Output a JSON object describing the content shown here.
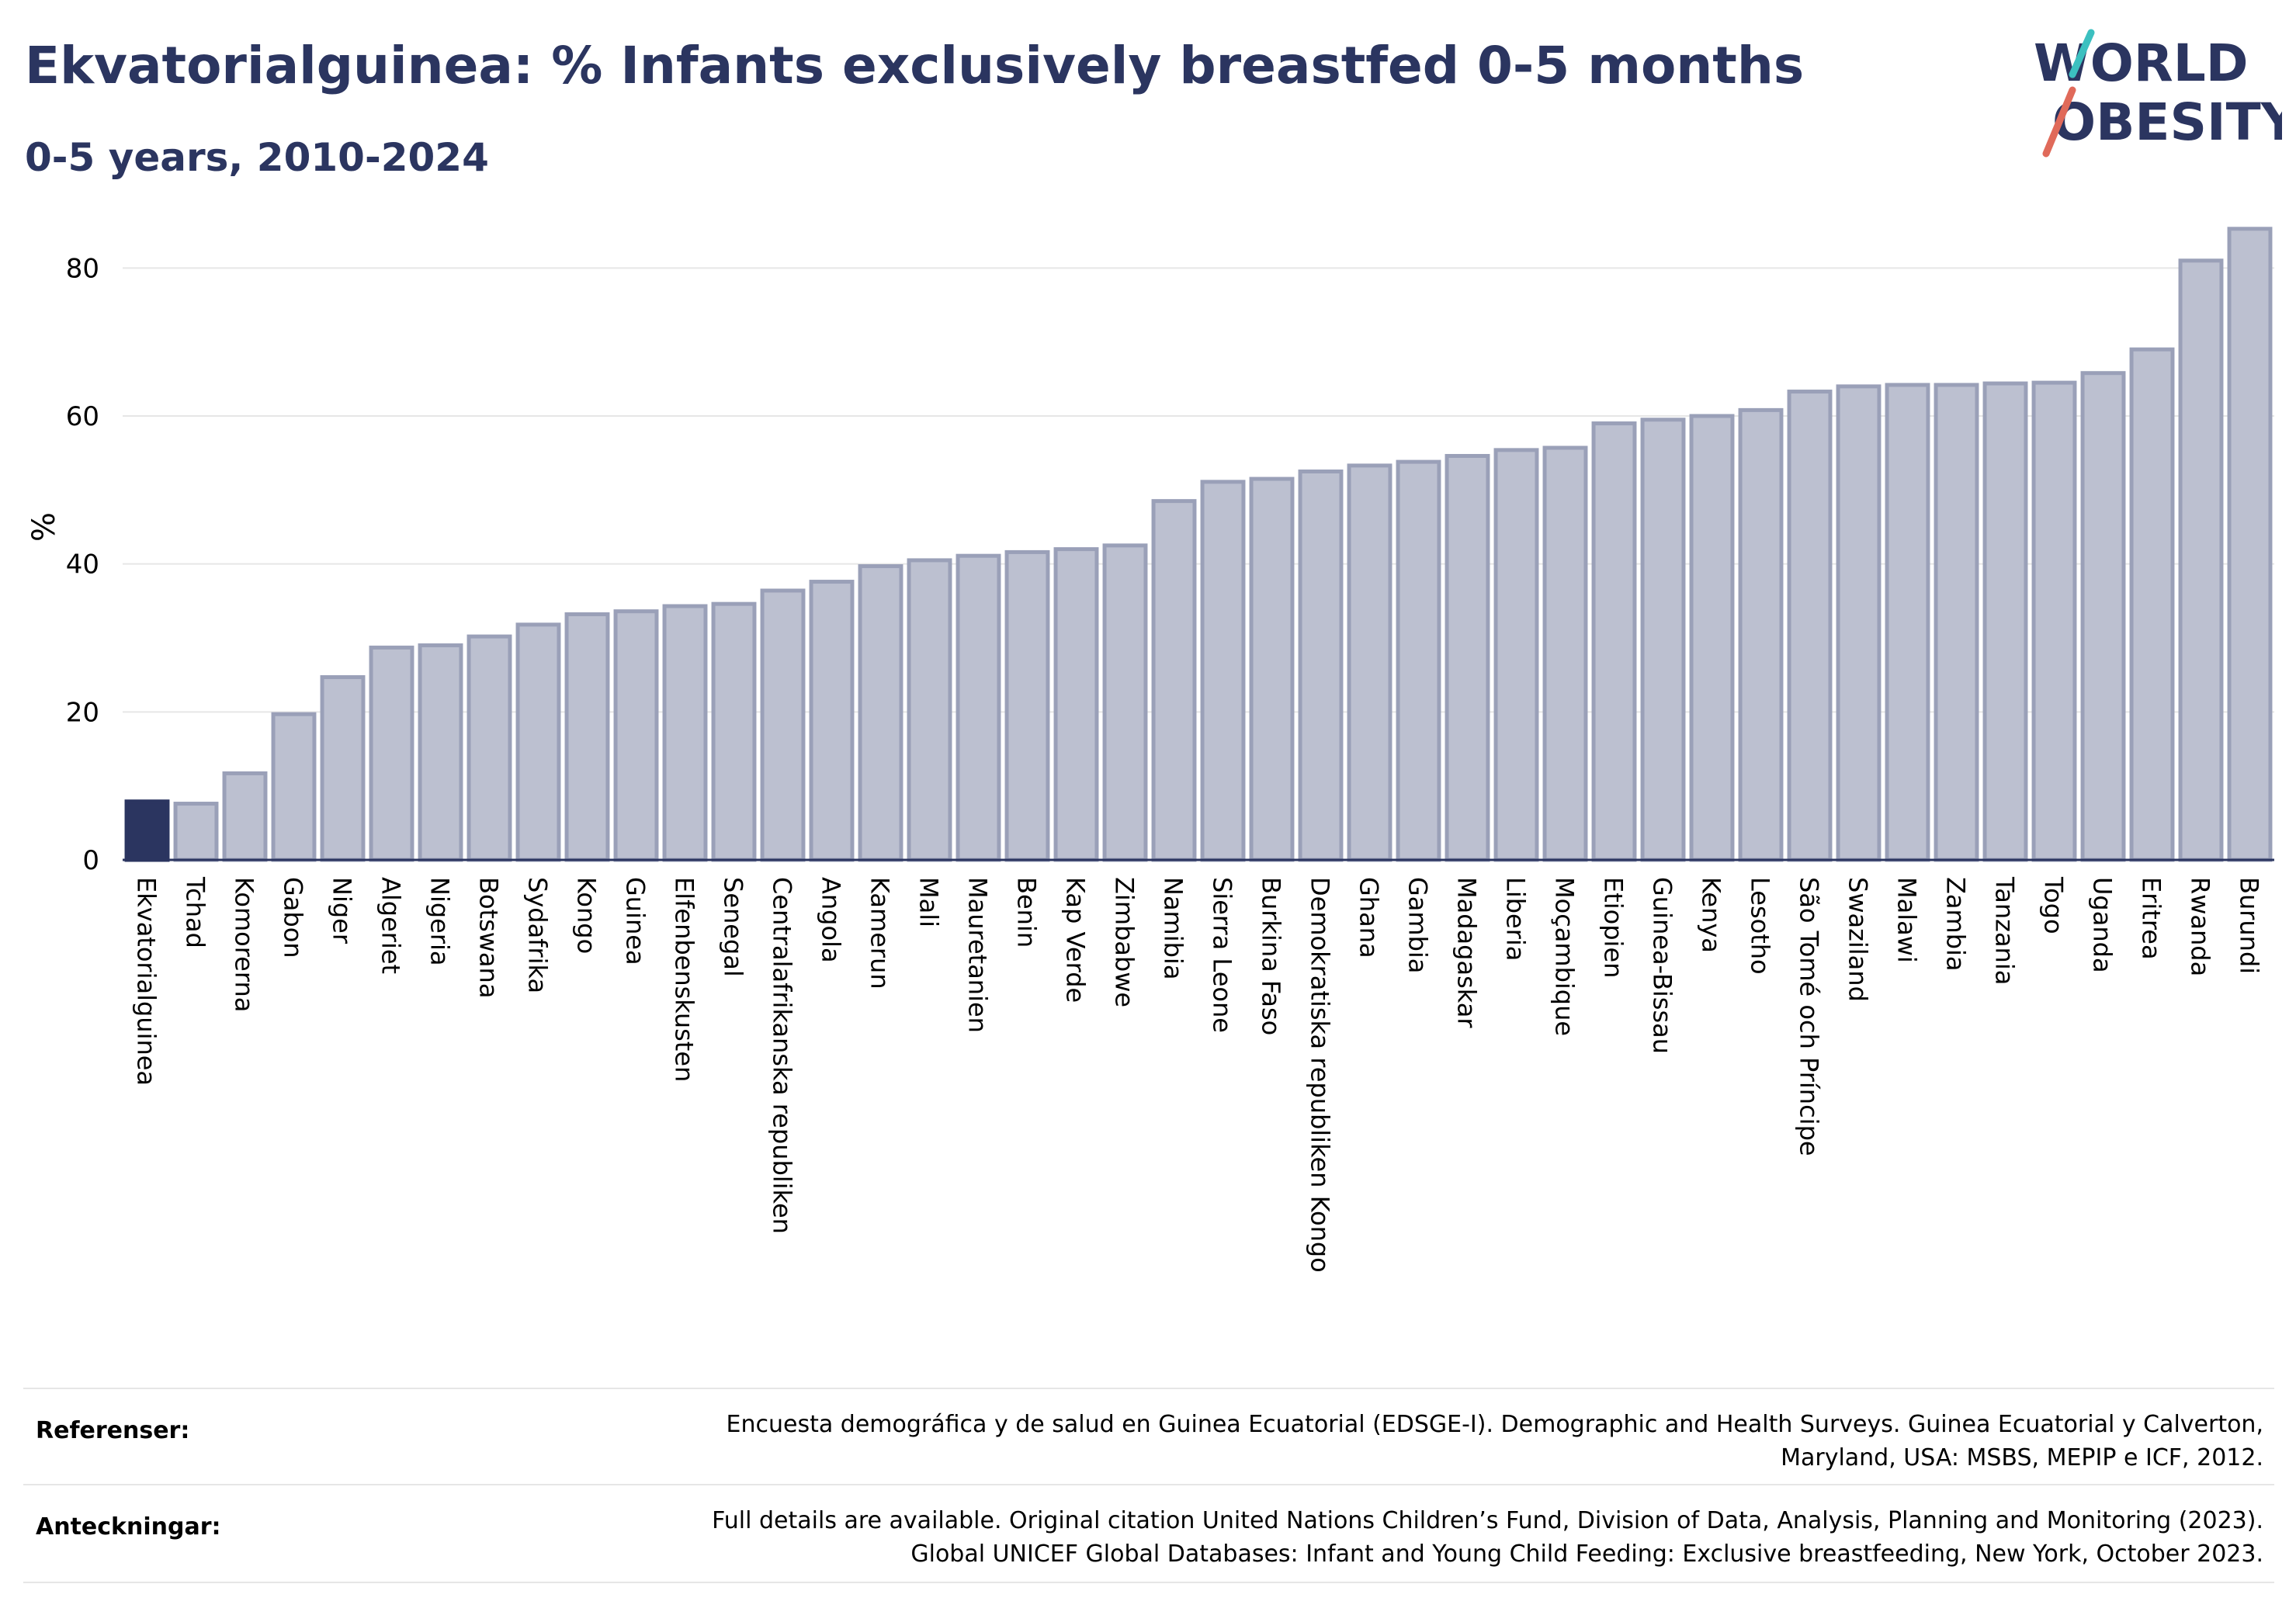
{
  "header": {
    "title": "Ekvatorialguinea: % Infants exclusively breastfed 0-5 months",
    "subtitle": "0-5 years, 2010-2024"
  },
  "logo": {
    "line1": "WORLD",
    "line2": "OBESITY"
  },
  "chart_data": {
    "type": "bar",
    "ylabel": "%",
    "ylim": [
      0,
      90
    ],
    "yticks": [
      0,
      20,
      40,
      60,
      80
    ],
    "grid": true,
    "highlight": "Ekvatorialguinea",
    "colors": {
      "highlight": "#2b3560",
      "bar_fill": "#bcc0d0",
      "bar_stroke": "#9aa0b8",
      "grid": "#e6e6e6",
      "axis": "#2b3560"
    },
    "categories": [
      "Ekvatorialguinea",
      "Tchad",
      "Komorerna",
      "Gabon",
      "Niger",
      "Algeriet",
      "Nigeria",
      "Botswana",
      "Sydafrika",
      "Kongo",
      "Guinea",
      "Elfenbenskusten",
      "Senegal",
      "Centralafrikanska republiken",
      "Angola",
      "Kamerun",
      "Mali",
      "Mauretanien",
      "Benin",
      "Kap Verde",
      "Zimbabwe",
      "Namibia",
      "Sierra Leone",
      "Burkina Faso",
      "Demokratiska republiken Kongo",
      "Ghana",
      "Gambia",
      "Madagaskar",
      "Liberia",
      "Moçambique",
      "Etiopien",
      "Guinea-Bissau",
      "Kenya",
      "Lesotho",
      "São Tomé och Príncipe",
      "Swaziland",
      "Malawi",
      "Zambia",
      "Tanzania",
      "Togo",
      "Uganda",
      "Eritrea",
      "Rwanda",
      "Burundi"
    ],
    "values": [
      7.9,
      7.6,
      11.7,
      19.7,
      24.7,
      28.7,
      29.0,
      30.2,
      31.8,
      33.2,
      33.6,
      34.3,
      34.6,
      36.4,
      37.6,
      39.7,
      40.5,
      41.1,
      41.6,
      42.0,
      42.5,
      48.5,
      51.1,
      51.5,
      52.5,
      53.3,
      53.8,
      54.6,
      55.4,
      55.7,
      59.0,
      59.5,
      60.0,
      60.8,
      63.3,
      64.0,
      64.2,
      64.2,
      64.4,
      64.5,
      65.8,
      69.0,
      81.0,
      85.3
    ]
  },
  "references": {
    "label": "Referenser:",
    "lines": [
      "Encuesta demográfica y de salud en Guinea Ecuatorial (EDSGE-I). Demographic and Health Surveys. Guinea Ecuatorial y Calverton,",
      "Maryland, USA: MSBS, MEPIP e ICF, 2012."
    ]
  },
  "notes": {
    "label": "Anteckningar:",
    "lines": [
      "Full details are available. Original citation United Nations Children’s Fund, Division of Data, Analysis, Planning and Monitoring (2023).",
      "Global UNICEF Global Databases: Infant and Young Child Feeding: Exclusive breastfeeding, New York, October 2023."
    ]
  }
}
